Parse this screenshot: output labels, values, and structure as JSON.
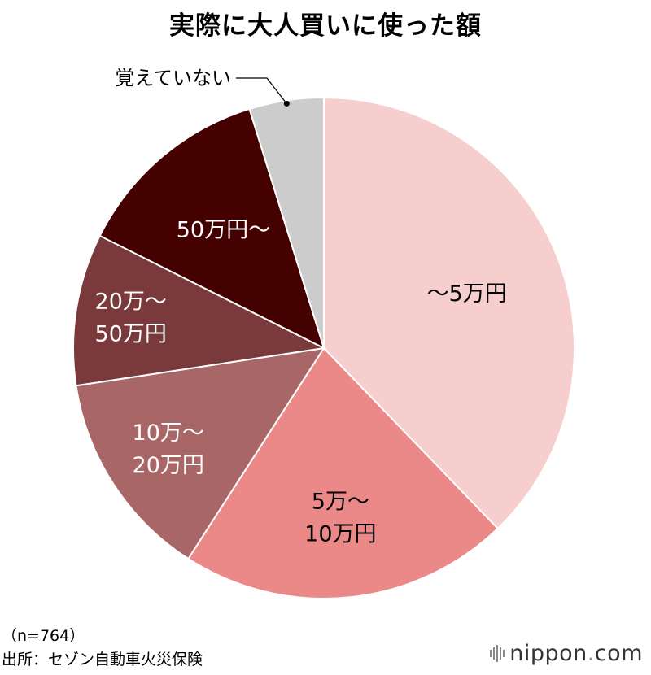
{
  "title": "実際に大人買いに使った額",
  "chart_data": {
    "type": "pie",
    "title": "実際に大人買いに使った額",
    "start": "12 o'clock, clockwise",
    "slices": [
      {
        "label": "〜5万円",
        "value": 37.8,
        "color": "#f5cecd",
        "text_color": "#000000",
        "lines": [
          "〜5万円"
        ]
      },
      {
        "label": "5万〜10万円",
        "value": 21.3,
        "color": "#eb8988",
        "text_color": "#000000",
        "lines": [
          "5万〜",
          "10万円"
        ]
      },
      {
        "label": "10万〜20万円",
        "value": 13.5,
        "color": "#a96666",
        "text_color": "#ffffff",
        "lines": [
          "10万〜",
          "20万円"
        ]
      },
      {
        "label": "20万〜50万円",
        "value": 9.8,
        "color": "#7a3a3b",
        "text_color": "#ffffff",
        "lines": [
          "20万〜",
          "50万円"
        ]
      },
      {
        "label": "50万円〜",
        "value": 12.8,
        "color": "#450000",
        "text_color": "#ffffff",
        "lines": [
          "50万円〜"
        ]
      },
      {
        "label": "覚えていない",
        "value": 4.8,
        "color": "#cccccc",
        "text_color": "#000000",
        "lines": [
          "覚えていない"
        ],
        "callout": true
      }
    ]
  },
  "notes": {
    "sample": "（n=764）",
    "source": "出所：セゾン自動車火災保険"
  },
  "logo": {
    "name": "nippon",
    "dot": ".",
    "tld": "com"
  }
}
